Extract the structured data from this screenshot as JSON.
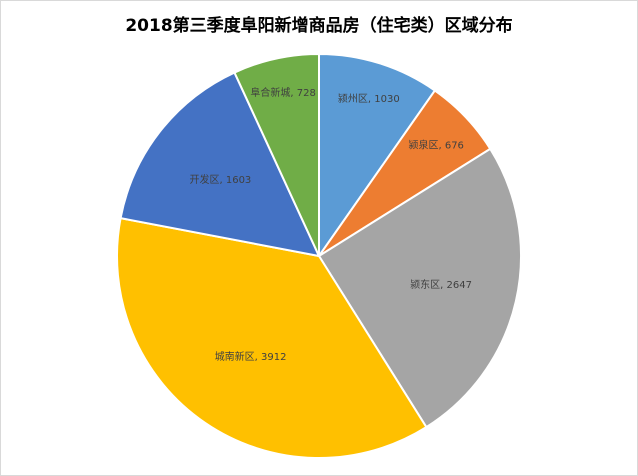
{
  "chart_data": {
    "type": "pie",
    "title": "2018第三季度阜阳新增商品房（住宅类）区域分布",
    "slices": [
      {
        "label": "颍州区, 1030",
        "name": "颍州区",
        "value": 1030,
        "color": "#5B9BD5"
      },
      {
        "label": "颍泉区, 676",
        "name": "颍泉区",
        "value": 676,
        "color": "#ED7D31"
      },
      {
        "label": "颍东区, 2647",
        "name": "颍东区",
        "value": 2647,
        "color": "#A5A5A5"
      },
      {
        "label": "城南新区, 3912",
        "name": "城南新区",
        "value": 3912,
        "color": "#FFC000"
      },
      {
        "label": "开发区, 1603",
        "name": "开发区",
        "value": 1603,
        "color": "#4472C4"
      },
      {
        "label": "阜合新城, 728",
        "name": "阜合新城",
        "value": 728,
        "color": "#70AD47"
      }
    ],
    "legend": "none",
    "data_labels": "inside"
  }
}
